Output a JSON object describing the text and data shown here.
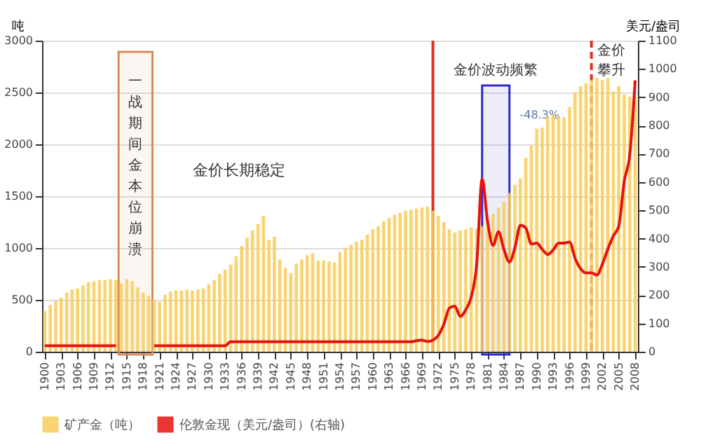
{
  "chart_data": {
    "type": "bar",
    "ylabel": "吨",
    "y2label": "美元/盎司",
    "x": [
      1900,
      1901,
      1902,
      1903,
      1904,
      1905,
      1906,
      1907,
      1908,
      1909,
      1910,
      1911,
      1912,
      1913,
      1914,
      1915,
      1916,
      1917,
      1918,
      1919,
      1920,
      1921,
      1922,
      1923,
      1924,
      1925,
      1926,
      1927,
      1928,
      1929,
      1930,
      1931,
      1932,
      1933,
      1934,
      1935,
      1936,
      1937,
      1938,
      1939,
      1940,
      1941,
      1942,
      1943,
      1944,
      1945,
      1946,
      1947,
      1948,
      1949,
      1950,
      1951,
      1952,
      1953,
      1954,
      1955,
      1956,
      1957,
      1958,
      1959,
      1960,
      1961,
      1962,
      1963,
      1964,
      1965,
      1966,
      1967,
      1968,
      1969,
      1970,
      1971,
      1972,
      1973,
      1974,
      1975,
      1976,
      1977,
      1978,
      1979,
      1980,
      1981,
      1982,
      1983,
      1984,
      1985,
      1986,
      1987,
      1988,
      1989,
      1990,
      1991,
      1992,
      1993,
      1994,
      1995,
      1996,
      1997,
      1998,
      1999,
      2000,
      2001,
      2002,
      2003,
      2004,
      2005,
      2006,
      2007,
      2008
    ],
    "series": [
      {
        "name": "矿产金（吨）",
        "color": "#f7cd5a",
        "values": [
          390,
          450,
          490,
          520,
          570,
          600,
          610,
          640,
          670,
          680,
          690,
          690,
          700,
          690,
          660,
          700,
          680,
          620,
          570,
          540,
          500,
          480,
          550,
          580,
          590,
          590,
          600,
          590,
          600,
          610,
          650,
          690,
          750,
          790,
          840,
          920,
          1020,
          1100,
          1170,
          1230,
          1310,
          1080,
          1110,
          890,
          810,
          760,
          850,
          890,
          930,
          950,
          880,
          880,
          870,
          860,
          960,
          1000,
          1030,
          1060,
          1080,
          1130,
          1180,
          1210,
          1260,
          1290,
          1320,
          1340,
          1360,
          1370,
          1380,
          1390,
          1400,
          1360,
          1310,
          1250,
          1180,
          1150,
          1170,
          1180,
          1200,
          1190,
          1210,
          1280,
          1330,
          1390,
          1450,
          1530,
          1610,
          1670,
          1870,
          1990,
          2150,
          2160,
          2270,
          2290,
          2270,
          2260,
          2360,
          2500,
          2560,
          2590,
          2620,
          2640,
          2620,
          2640,
          2510,
          2560,
          2480,
          2460,
          2460
        ]
      },
      {
        "name": "伦敦金现（美元/盎司）(右轴)",
        "type": "line",
        "axis": "y2",
        "color": "#e8120c",
        "values": [
          21,
          21,
          21,
          21,
          21,
          21,
          21,
          21,
          21,
          21,
          21,
          21,
          21,
          21,
          null,
          null,
          null,
          null,
          null,
          null,
          21,
          21,
          21,
          21,
          21,
          21,
          21,
          21,
          21,
          21,
          21,
          21,
          21,
          21,
          35,
          35,
          35,
          35,
          35,
          35,
          35,
          35,
          35,
          35,
          35,
          35,
          35,
          35,
          35,
          35,
          35,
          35,
          35,
          35,
          35,
          35,
          35,
          35,
          35,
          35,
          35,
          35,
          35,
          35,
          35,
          35,
          35,
          35,
          39,
          41,
          36,
          41,
          58,
          97,
          154,
          161,
          125,
          148,
          193,
          307,
          612,
          460,
          376,
          424,
          361,
          317,
          368,
          447,
          437,
          381,
          384,
          362,
          344,
          360,
          384,
          384,
          388,
          331,
          294,
          279,
          279,
          271,
          310,
          363,
          409,
          444,
          603,
          695,
          960
        ]
      }
    ],
    "xlim": [
      1899.5,
      2008.5
    ],
    "xticks": [
      1900,
      1903,
      1906,
      1909,
      1912,
      1915,
      1918,
      1921,
      1924,
      1927,
      1930,
      1933,
      1936,
      1939,
      1942,
      1945,
      1948,
      1951,
      1954,
      1957,
      1960,
      1963,
      1966,
      1969,
      1972,
      1975,
      1978,
      1981,
      1984,
      1987,
      1990,
      1993,
      1996,
      1999,
      2002,
      2005,
      2008
    ],
    "ylim": [
      0,
      3000
    ],
    "yticks": [
      0,
      500,
      1000,
      1500,
      2000,
      2500,
      3000
    ],
    "y2lim": [
      0,
      1100
    ],
    "y2ticks": [
      0,
      100,
      200,
      300,
      400,
      500,
      600,
      700,
      800,
      900,
      1000,
      1100
    ],
    "grid": "y",
    "legend": "bottom",
    "bands": [
      {
        "axis": "x",
        "from": 1913.5,
        "to": 1919.7,
        "label": "一战期间金本位崩溃",
        "color": "#d9895a"
      },
      {
        "axis": "x",
        "from": 1980,
        "to": 1985,
        "label": "金价波动频繁",
        "color": "#2b2bcc"
      }
    ],
    "ref_lines": [
      {
        "axis": "x",
        "value": 1971,
        "color": "#e03020",
        "line_style": "solid"
      },
      {
        "axis": "x",
        "value": 2000,
        "label": "金价攀升",
        "color": "#e03020",
        "line_style": "dashed"
      }
    ],
    "annotations": [
      "金价长期稳定",
      "-48.3%"
    ]
  }
}
